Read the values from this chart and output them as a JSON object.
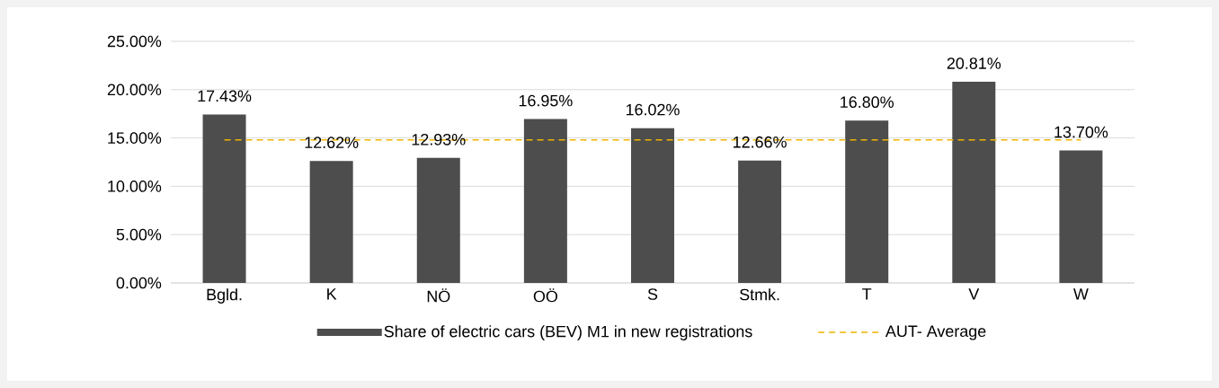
{
  "chart_data": {
    "type": "bar",
    "categories": [
      "Bgld.",
      "K",
      "NÖ",
      "OÖ",
      "S",
      "Stmk.",
      "T",
      "V",
      "W"
    ],
    "series": [
      {
        "name": "Share of electric cars (BEV) M1 in new registrations",
        "color": "#4d4d4d",
        "values": [
          17.43,
          12.62,
          12.93,
          16.95,
          16.02,
          12.66,
          16.8,
          20.81,
          13.7
        ],
        "value_labels": [
          "17.43%",
          "12.62%",
          "12.93%",
          "16.95%",
          "16.02%",
          "12.66%",
          "16.80%",
          "20.81%",
          "13.70%"
        ]
      },
      {
        "type": "line",
        "name": "AUT- Average",
        "color": "#f0b400",
        "line_style": "dashed",
        "marker": "none",
        "values": [
          14.8,
          14.8,
          14.8,
          14.8,
          14.8,
          14.8,
          14.8,
          14.8,
          14.8
        ]
      }
    ],
    "ylim": [
      0,
      25
    ],
    "yticks": [
      {
        "value": 0,
        "label": "0.00%"
      },
      {
        "value": 5,
        "label": "5.00%"
      },
      {
        "value": 10,
        "label": "10.00%"
      },
      {
        "value": 15,
        "label": "15.00%"
      },
      {
        "value": 20,
        "label": "20.00%"
      },
      {
        "value": 25,
        "label": "25.00%"
      }
    ],
    "grid": "y",
    "legend": "bottom"
  }
}
